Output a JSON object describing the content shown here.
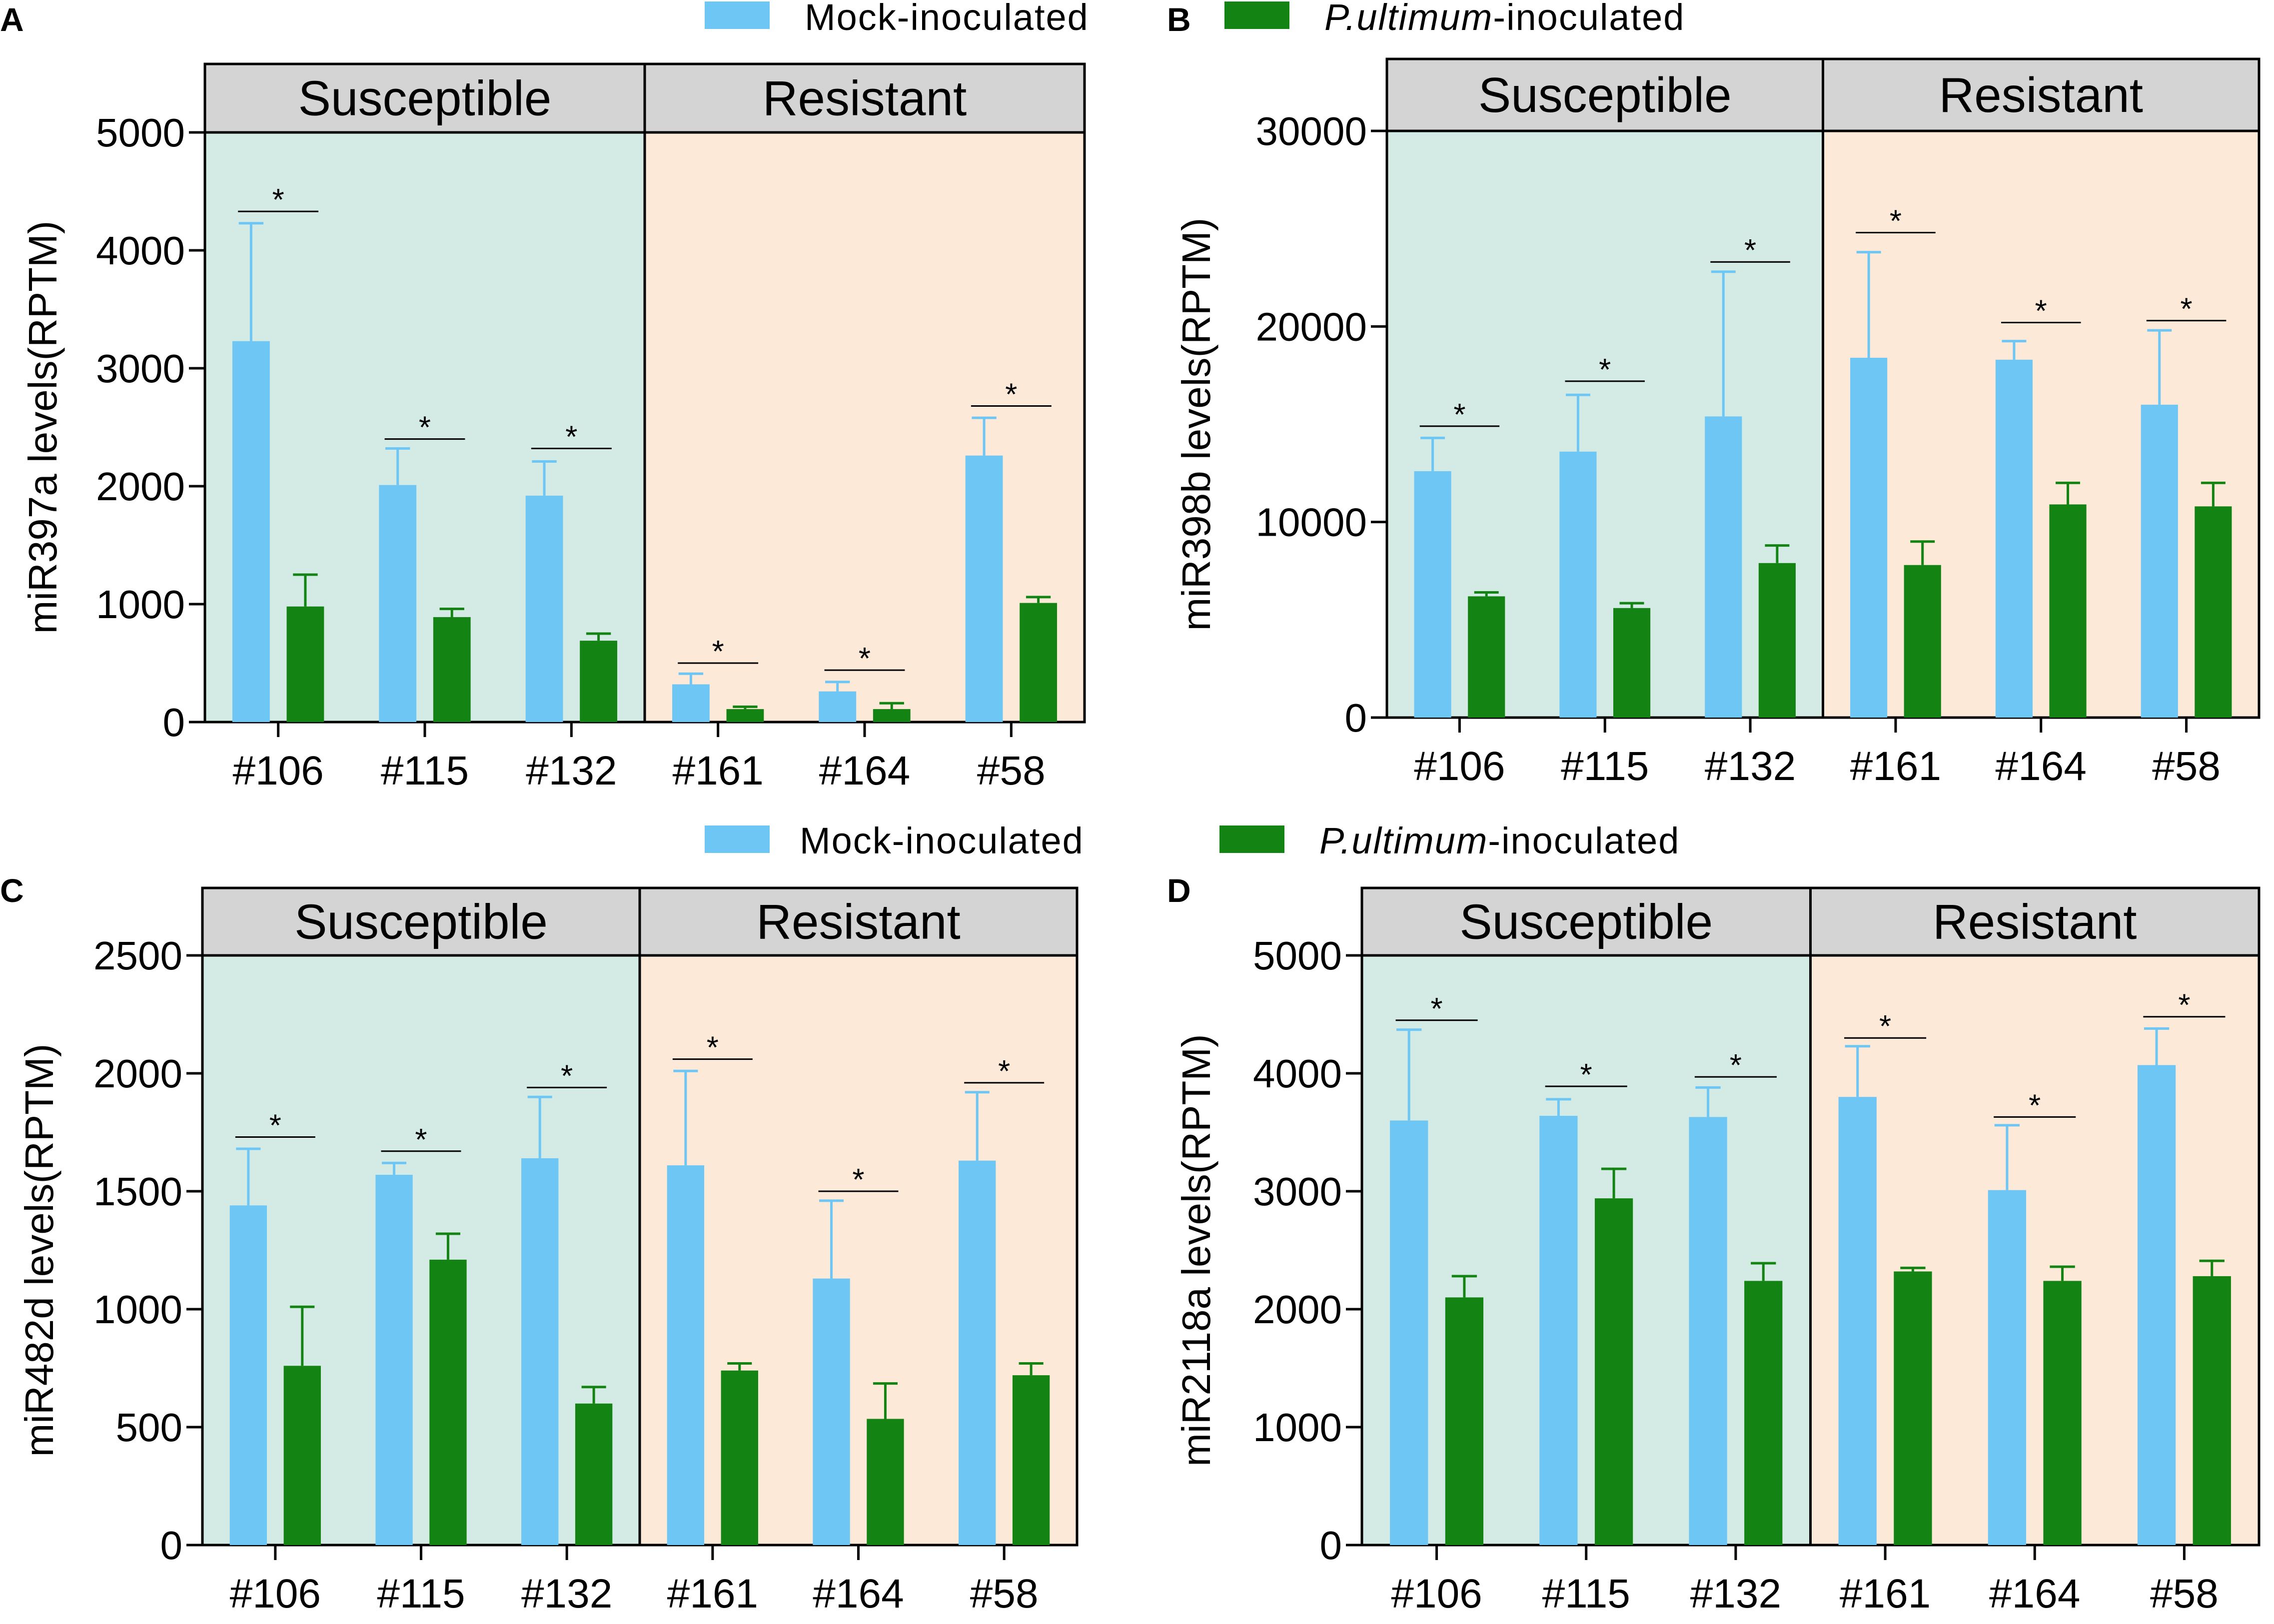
{
  "legend": {
    "mock_label": "Mock-inoculated",
    "pu_label_italic": "P.ultimum",
    "pu_label_rest": "-inoculated",
    "mock_color": "#6ec6f5",
    "pu_color": "#138413"
  },
  "colors": {
    "susceptible_bg": "#d4ebe5",
    "resistant_bg": "#fde9d8",
    "header_bg": "#d4d4d4"
  },
  "chart_data": [
    {
      "panel": "A",
      "type": "bar",
      "ylabel": "miR397a levels(RPTM)",
      "ylim": [
        0,
        5000
      ],
      "ticks": [
        0,
        1000,
        2000,
        3000,
        4000,
        5000
      ],
      "tick_labels": [
        "0",
        "1000",
        "2000",
        "3000",
        "4000",
        "5000"
      ],
      "groups": [
        "Susceptible",
        "Resistant"
      ],
      "categories": [
        "#106",
        "#115",
        "#132",
        "#161",
        "#164",
        "#58"
      ],
      "series": [
        {
          "name": "Mock-inoculated",
          "values": [
            3230,
            2010,
            1920,
            320,
            260,
            2260
          ],
          "errors": [
            1000,
            310,
            290,
            90,
            80,
            320
          ]
        },
        {
          "name": "P.ultimum-inoculated",
          "values": [
            980,
            890,
            690,
            110,
            110,
            1010
          ],
          "errors": [
            270,
            70,
            60,
            20,
            50,
            50
          ]
        }
      ],
      "significance": [
        "*",
        "*",
        "*",
        "*",
        "*",
        "*"
      ],
      "sig_values": [
        4330,
        2400,
        2320,
        500,
        440,
        2680
      ]
    },
    {
      "panel": "B",
      "type": "bar",
      "ylabel": "miR398b levels(RPTM)",
      "ylim": [
        0,
        30000
      ],
      "ticks": [
        0,
        10000,
        20000,
        30000
      ],
      "tick_labels": [
        "0",
        "10000",
        "20000",
        "30000"
      ],
      "groups": [
        "Susceptible",
        "Resistant"
      ],
      "categories": [
        "#106",
        "#115",
        "#132",
        "#161",
        "#164",
        "#58"
      ],
      "series": [
        {
          "name": "Mock-inoculated",
          "values": [
            12600,
            13600,
            15400,
            18400,
            18300,
            16000
          ],
          "errors": [
            1700,
            2900,
            7400,
            5400,
            950,
            3800
          ]
        },
        {
          "name": "P.ultimum-inoculated",
          "values": [
            6200,
            5600,
            7900,
            7800,
            10900,
            10800
          ],
          "errors": [
            200,
            250,
            900,
            1200,
            1100,
            1200
          ]
        }
      ],
      "significance": [
        "*",
        "*",
        "*",
        "*",
        "*",
        "*"
      ],
      "sig_values": [
        14900,
        17200,
        23300,
        24800,
        20200,
        20300
      ]
    },
    {
      "panel": "C",
      "type": "bar",
      "ylabel": "miR482d levels(RPTM)",
      "ylim": [
        0,
        2500
      ],
      "ticks": [
        0,
        500,
        1000,
        1500,
        2000,
        2500
      ],
      "tick_labels": [
        "0",
        "500",
        "1000",
        "1500",
        "2000",
        "2500"
      ],
      "groups": [
        "Susceptible",
        "Resistant"
      ],
      "categories": [
        "#106",
        "#115",
        "#132",
        "#161",
        "#164",
        "#58"
      ],
      "series": [
        {
          "name": "Mock-inoculated",
          "values": [
            1440,
            1570,
            1640,
            1610,
            1130,
            1630
          ],
          "errors": [
            240,
            50,
            260,
            400,
            330,
            290
          ]
        },
        {
          "name": "P.ultimum-inoculated",
          "values": [
            760,
            1210,
            600,
            740,
            535,
            720
          ],
          "errors": [
            250,
            110,
            70,
            30,
            150,
            50
          ]
        }
      ],
      "significance": [
        "*",
        "*",
        "*",
        "*",
        "*",
        "*"
      ],
      "sig_values": [
        1730,
        1670,
        1940,
        2060,
        1500,
        1960
      ]
    },
    {
      "panel": "D",
      "type": "bar",
      "ylabel": "miR2118a levels(RPTM)",
      "ylim": [
        0,
        5000
      ],
      "ticks": [
        0,
        1000,
        2000,
        3000,
        4000,
        5000
      ],
      "tick_labels": [
        "0",
        "1000",
        "2000",
        "3000",
        "4000",
        "5000"
      ],
      "groups": [
        "Susceptible",
        "Resistant"
      ],
      "categories": [
        "#106",
        "#115",
        "#132",
        "#161",
        "#164",
        "#58"
      ],
      "series": [
        {
          "name": "Mock-inoculated",
          "values": [
            3600,
            3640,
            3630,
            3800,
            3010,
            4070
          ],
          "errors": [
            770,
            140,
            250,
            430,
            550,
            310
          ]
        },
        {
          "name": "P.ultimum-inoculated",
          "values": [
            2100,
            2940,
            2240,
            2320,
            2240,
            2280
          ],
          "errors": [
            180,
            250,
            150,
            30,
            120,
            130
          ]
        }
      ],
      "significance": [
        "*",
        "*",
        "*",
        "*",
        "*",
        "*"
      ],
      "sig_values": [
        4450,
        3890,
        3970,
        4300,
        3630,
        4480
      ]
    }
  ]
}
